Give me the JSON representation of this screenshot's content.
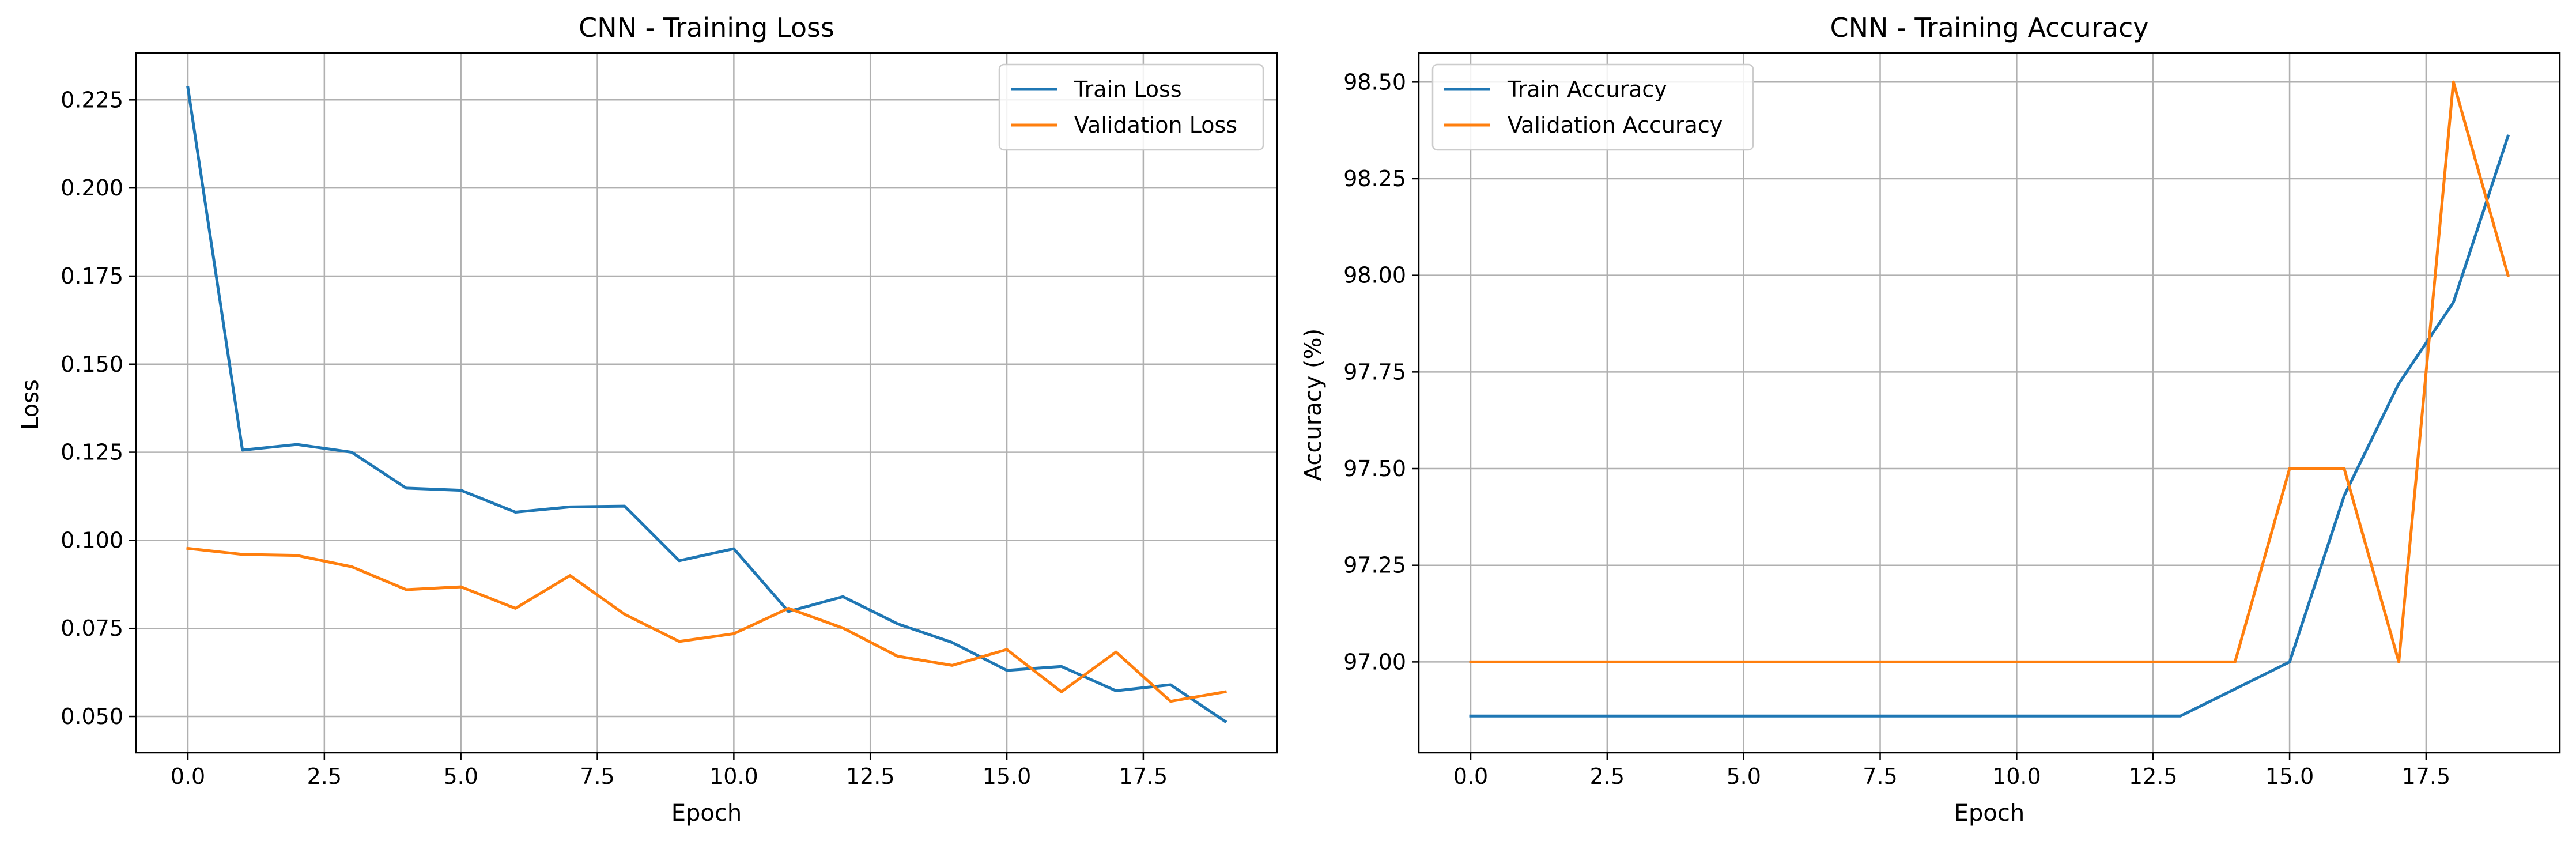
{
  "figure": {
    "background": "#ffffff",
    "grid_color": "#b0b0b0",
    "axis_color": "#000000"
  },
  "chart_data": [
    {
      "type": "line",
      "title": "CNN - Training Loss",
      "xlabel": "Epoch",
      "ylabel": "Loss",
      "xlim": [
        -0.95,
        19.95
      ],
      "ylim": [
        0.0397,
        0.2383
      ],
      "xticks": [
        0,
        2.5,
        5,
        7.5,
        10,
        12.5,
        15,
        17.5
      ],
      "xtick_labels": [
        "0.0",
        "2.5",
        "5.0",
        "7.5",
        "10.0",
        "12.5",
        "15.0",
        "17.5"
      ],
      "yticks": [
        0.05,
        0.075,
        0.1,
        0.125,
        0.15,
        0.175,
        0.2,
        0.225
      ],
      "ytick_labels": [
        "0.050",
        "0.075",
        "0.100",
        "0.125",
        "0.150",
        "0.175",
        "0.200",
        "0.225"
      ],
      "grid": true,
      "legend_position": "top-right",
      "x": [
        0,
        1,
        2,
        3,
        4,
        5,
        6,
        7,
        8,
        9,
        10,
        11,
        12,
        13,
        14,
        15,
        16,
        17,
        18,
        19
      ],
      "series": [
        {
          "name": "Train Loss",
          "color": "#1f77b4",
          "values": [
            0.2285,
            0.1256,
            0.1272,
            0.125,
            0.1148,
            0.1142,
            0.108,
            0.1095,
            0.1097,
            0.0942,
            0.0976,
            0.0798,
            0.084,
            0.0763,
            0.071,
            0.0631,
            0.0642,
            0.0573,
            0.059,
            0.0486
          ]
        },
        {
          "name": "Validation Loss",
          "color": "#ff7f0e",
          "values": [
            0.0977,
            0.096,
            0.0957,
            0.0925,
            0.086,
            0.0868,
            0.0807,
            0.09,
            0.079,
            0.0713,
            0.0735,
            0.0807,
            0.0751,
            0.0671,
            0.0645,
            0.069,
            0.057,
            0.0683,
            0.0543,
            0.057
          ]
        }
      ]
    },
    {
      "type": "line",
      "title": "CNN - Training Accuracy",
      "xlabel": "Epoch",
      "ylabel": "Accuracy (%)",
      "xlim": [
        -0.95,
        19.95
      ],
      "ylim": [
        96.765,
        98.575
      ],
      "xticks": [
        0,
        2.5,
        5,
        7.5,
        10,
        12.5,
        15,
        17.5
      ],
      "xtick_labels": [
        "0.0",
        "2.5",
        "5.0",
        "7.5",
        "10.0",
        "12.5",
        "15.0",
        "17.5"
      ],
      "yticks": [
        97.0,
        97.25,
        97.5,
        97.75,
        98.0,
        98.25,
        98.5
      ],
      "ytick_labels": [
        "97.00",
        "97.25",
        "97.50",
        "97.75",
        "98.00",
        "98.25",
        "98.50"
      ],
      "grid": true,
      "legend_position": "top-left",
      "x": [
        0,
        1,
        2,
        3,
        4,
        5,
        6,
        7,
        8,
        9,
        10,
        11,
        12,
        13,
        14,
        15,
        16,
        17,
        18,
        19
      ],
      "series": [
        {
          "name": "Train Accuracy",
          "color": "#1f77b4",
          "values": [
            96.86,
            96.86,
            96.86,
            96.86,
            96.86,
            96.86,
            96.86,
            96.86,
            96.86,
            96.86,
            96.86,
            96.86,
            96.86,
            96.86,
            96.93,
            97.0,
            97.43,
            97.72,
            97.93,
            98.36
          ]
        },
        {
          "name": "Validation Accuracy",
          "color": "#ff7f0e",
          "values": [
            97.0,
            97.0,
            97.0,
            97.0,
            97.0,
            97.0,
            97.0,
            97.0,
            97.0,
            97.0,
            97.0,
            97.0,
            97.0,
            97.0,
            97.0,
            97.5,
            97.5,
            97.0,
            98.5,
            98.0
          ]
        }
      ]
    }
  ]
}
